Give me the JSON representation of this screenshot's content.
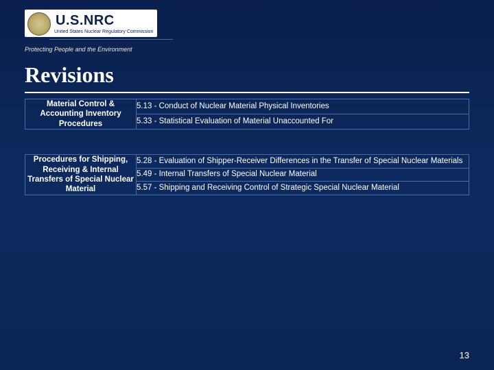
{
  "logo": {
    "main": "U.S.NRC",
    "sub": "United States Nuclear Regulatory Commission",
    "tagline": "Protecting People and the Environment"
  },
  "title": "Revisions",
  "sections": [
    {
      "category": "Material Control & Accounting Inventory Procedures",
      "items": [
        "5.13 - Conduct of Nuclear Material Physical Inventories",
        "5.33 - Statistical Evaluation of Material Unaccounted For"
      ]
    },
    {
      "category": "Procedures for Shipping, Receiving & Internal Transfers of Special Nuclear Material",
      "items": [
        "5.28 - Evaluation of Shipper-Receiver Differences in the Transfer of Special Nuclear Materials",
        "5.49 - Internal Transfers of Special Nuclear Material",
        "5.57 - Shipping and Receiving Control of Strategic Special Nuclear Material"
      ]
    }
  ],
  "page_number": "13",
  "colors": {
    "bg_top": "#0a1f4d",
    "bg_bottom": "#0a2455",
    "border": "#4a6aa8",
    "text": "#ffffff"
  }
}
